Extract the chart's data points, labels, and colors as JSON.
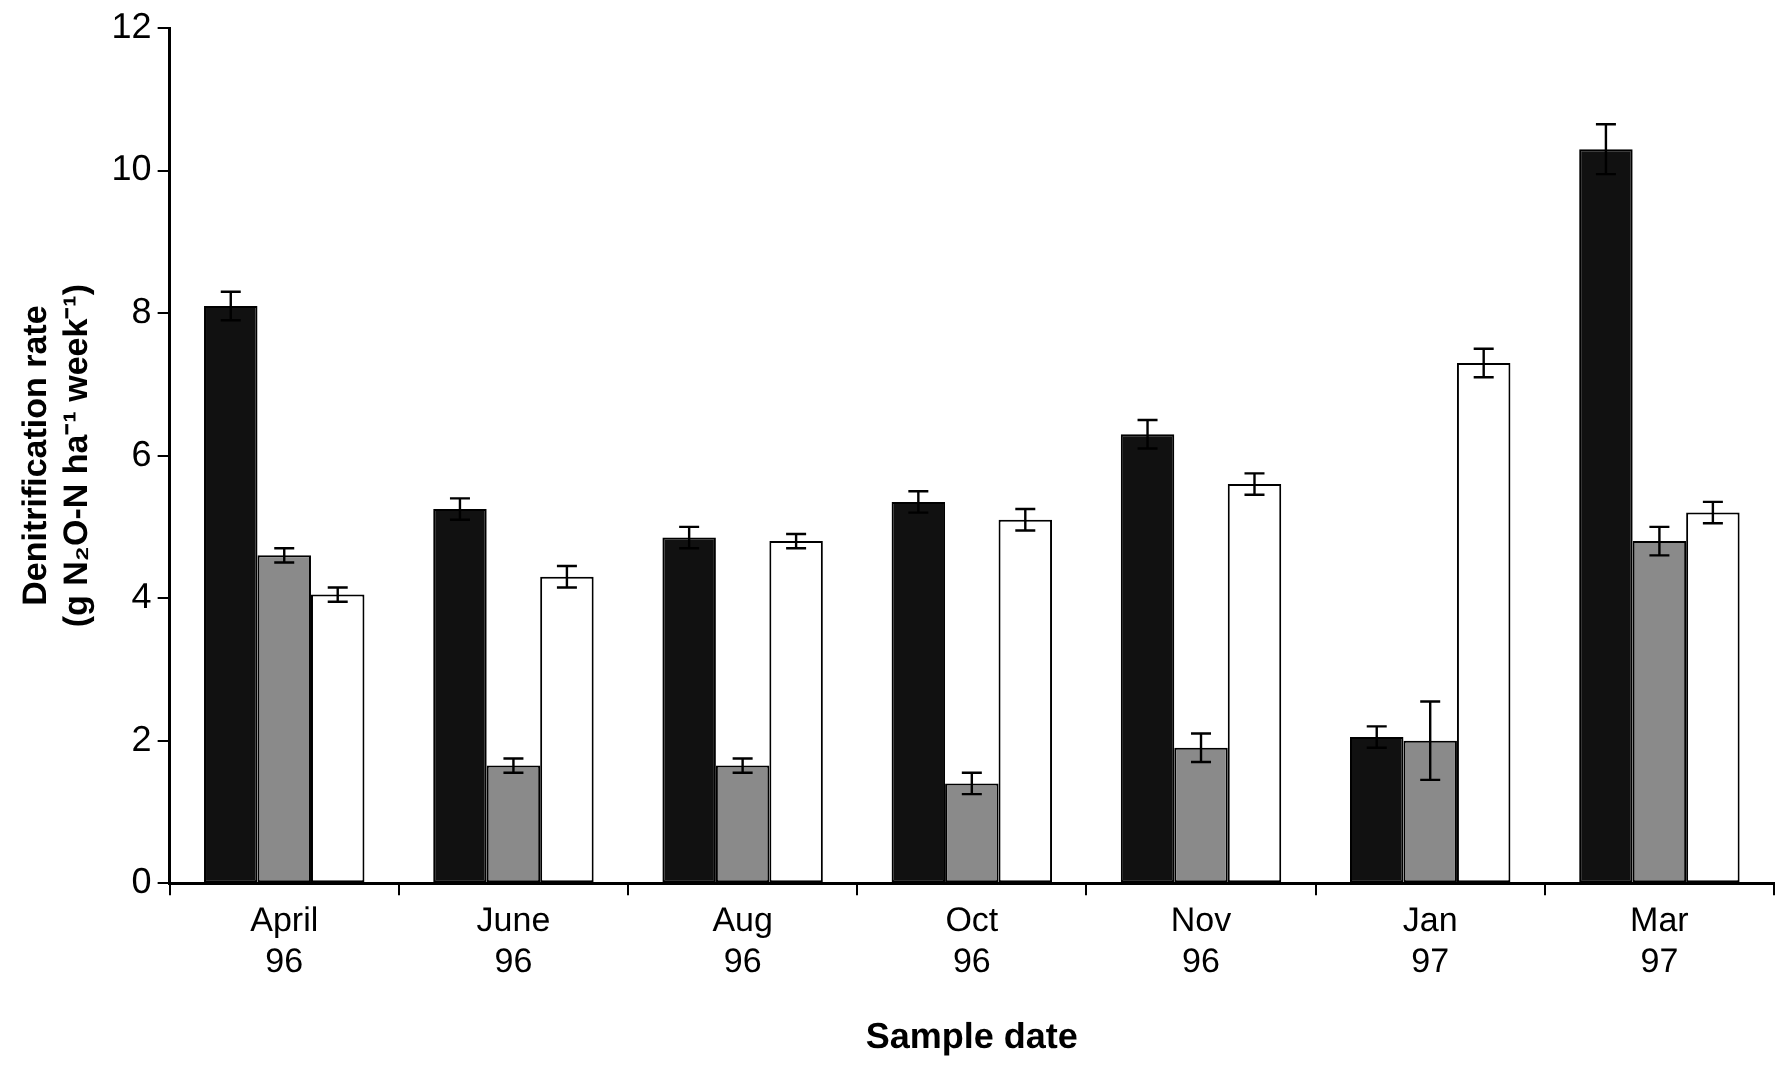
{
  "chart_data": {
    "type": "bar",
    "xlabel": "Sample date",
    "ylabel": "Denitrification rate\n(g N₂O-N ha⁻¹ week⁻¹)",
    "categories": [
      "April 96",
      "June 96",
      "Aug 96",
      "Oct 96",
      "Nov 96",
      "Jan 97",
      "Mar 97"
    ],
    "series": [
      {
        "color": "#111111",
        "values": [
          8.1,
          5.25,
          4.85,
          5.35,
          6.3,
          2.05,
          10.3
        ],
        "errors": [
          0.2,
          0.15,
          0.15,
          0.15,
          0.2,
          0.15,
          0.35
        ]
      },
      {
        "color": "#8a8a8a",
        "values": [
          4.6,
          1.65,
          1.65,
          1.4,
          1.9,
          2.0,
          4.8
        ],
        "errors": [
          0.1,
          0.1,
          0.1,
          0.15,
          0.2,
          0.55,
          0.2
        ]
      },
      {
        "color": "#ffffff",
        "values": [
          4.05,
          4.3,
          4.8,
          5.1,
          5.6,
          7.3,
          5.2
        ],
        "errors": [
          0.1,
          0.15,
          0.1,
          0.15,
          0.15,
          0.2,
          0.15
        ]
      }
    ],
    "ylim": [
      0,
      12
    ],
    "yticks": [
      0,
      2,
      4,
      6,
      8,
      10,
      12
    ],
    "grid": false,
    "legend": false
  }
}
